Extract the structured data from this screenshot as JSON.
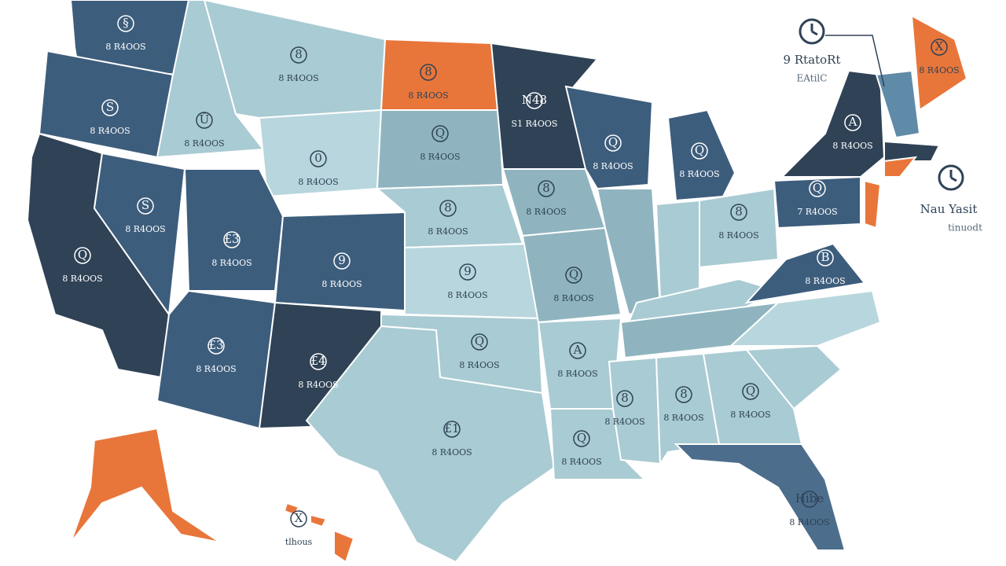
{
  "regions": [
    {
      "icon": "§",
      "label": "8 R4OOS"
    },
    {
      "icon": "S",
      "label": "8 R4OOS"
    },
    {
      "icon": "Q",
      "label": "8 R4OOS"
    },
    {
      "icon": "S",
      "label": "8 R4OOS"
    },
    {
      "icon": "Ū",
      "label": "8 R4OOS"
    },
    {
      "icon": "8",
      "label": "8 R4OOS"
    },
    {
      "icon": "0",
      "label": "8 R4OOS"
    },
    {
      "icon": "£3",
      "label": "8 R4OOS"
    },
    {
      "icon": "9",
      "label": "8 R4OOS"
    },
    {
      "icon": "£3",
      "label": "8 R4OOS"
    },
    {
      "icon": "£4",
      "label": "8 R4OOS"
    },
    {
      "icon": "8",
      "label": "8 R4OOS"
    },
    {
      "icon": "Q",
      "label": "8 R4OOS"
    },
    {
      "icon": "8",
      "label": "8 R4OOS"
    },
    {
      "icon": "9",
      "label": "8 R4OOS"
    },
    {
      "icon": "Q",
      "label": "8 R4OOS"
    },
    {
      "icon": "£1",
      "label": "8 R4OOS"
    },
    {
      "icon": "N48",
      "label": "S1 R4OOS"
    },
    {
      "icon": "8",
      "label": "8 R4OOS"
    },
    {
      "icon": "Q",
      "label": "8 R4OOS"
    },
    {
      "icon": "A",
      "label": "8 R4OOS"
    },
    {
      "icon": "Q",
      "label": "8 R4OOS"
    },
    {
      "icon": "Q",
      "label": "8 R4OOS"
    },
    {
      "icon": "8",
      "label": "8 R4OOS"
    },
    {
      "icon": "Q",
      "label": "8 R4OOS"
    },
    {
      "icon": "8",
      "label": "8 R4OOS"
    },
    {
      "icon": "8",
      "label": "8 R4OOS"
    },
    {
      "icon": "Q",
      "label": "8 R4OOS"
    },
    {
      "icon": "Hibe",
      "label": "8 R4OOS"
    },
    {
      "icon": "B",
      "label": "8 R4OOS"
    },
    {
      "icon": "Q",
      "label": "7 R4OOS"
    },
    {
      "icon": "A",
      "label": "8 R4OOS"
    },
    {
      "icon": "X",
      "label": "8 R4OOS"
    },
    {
      "icon": "X",
      "label": "tlhous"
    }
  ],
  "annotations": {
    "top_title": "9 RtatoRt",
    "top_subtitle": "EAtilC",
    "side_title": "Nau Yasit",
    "side_subtitle": "tinuodt"
  }
}
